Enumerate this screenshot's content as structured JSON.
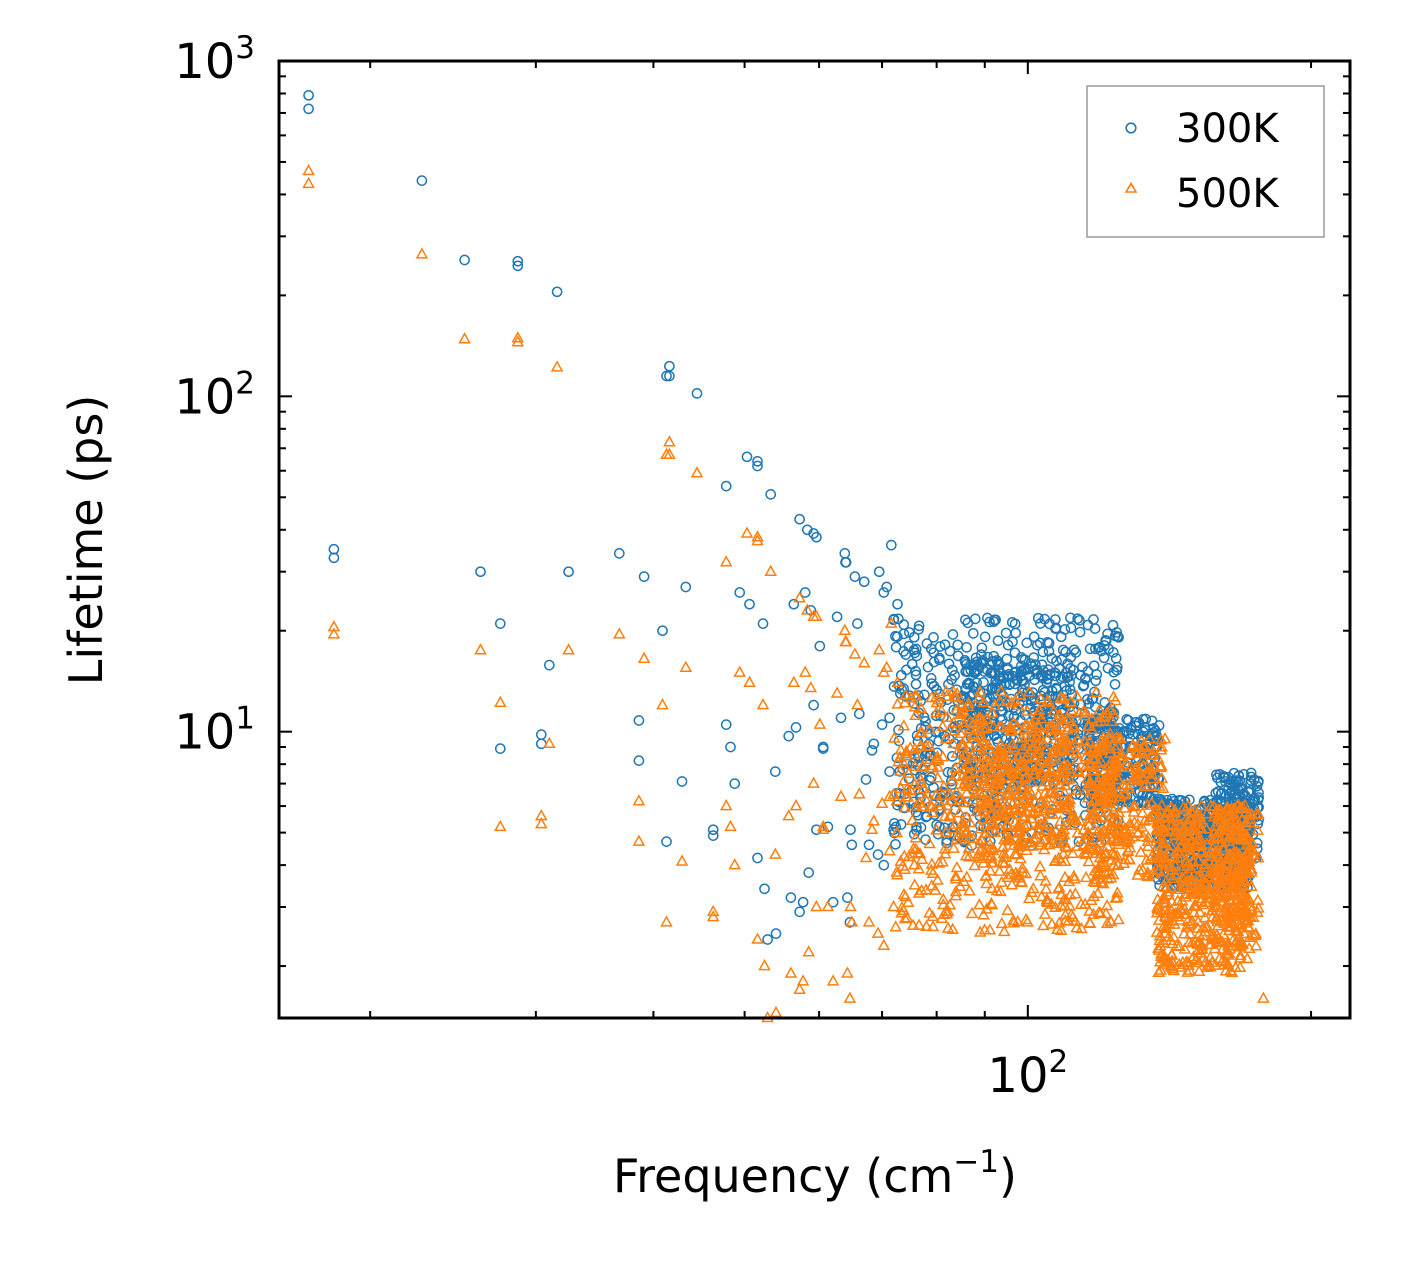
{
  "chart_data": {
    "type": "scatter",
    "title": "",
    "xlabel": "Frequency (cm",
    "xlabel_sup": "−1",
    "xlabel_close": ")",
    "ylabel": "Lifetime (ps)",
    "xscale": "log",
    "yscale": "log",
    "xlim": [
      16,
      220
    ],
    "ylim": [
      1.4,
      1000
    ],
    "x_tick_labels": [
      {
        "value": 100,
        "base": "10",
        "exp": "2"
      }
    ],
    "y_tick_labels": [
      {
        "value": 10,
        "base": "10",
        "exp": "1"
      },
      {
        "value": 100,
        "base": "10",
        "exp": "2"
      },
      {
        "value": 1000,
        "base": "10",
        "exp": "3"
      }
    ],
    "legend_position": "top-right",
    "series": [
      {
        "name": "300K",
        "color": "#1f77b4",
        "marker": "circle",
        "points": [
          [
            17.2,
            790
          ],
          [
            17.2,
            720
          ],
          [
            18.3,
            35
          ],
          [
            18.3,
            33
          ],
          [
            22.7,
            440
          ],
          [
            25.2,
            255
          ],
          [
            26.2,
            30
          ],
          [
            27.5,
            21
          ],
          [
            27.5,
            8.9
          ],
          [
            28.7,
            253
          ],
          [
            28.7,
            245
          ],
          [
            30.4,
            9.8
          ],
          [
            30.4,
            9.2
          ],
          [
            31.0,
            15.8
          ],
          [
            31.6,
            205
          ],
          [
            32.5,
            30
          ],
          [
            36.8,
            34
          ],
          [
            38.6,
            10.8
          ],
          [
            38.6,
            8.2
          ],
          [
            39.1,
            29
          ],
          [
            40.9,
            20
          ],
          [
            41.3,
            115
          ],
          [
            41.6,
            123
          ],
          [
            41.6,
            115
          ],
          [
            41.3,
            4.7
          ],
          [
            42.9,
            7.1
          ],
          [
            43.3,
            27
          ],
          [
            44.5,
            102
          ],
          [
            46.3,
            5.1
          ],
          [
            46.3,
            4.9
          ],
          [
            47.8,
            54
          ],
          [
            47.8,
            10.5
          ],
          [
            48.3,
            9.0
          ],
          [
            48.8,
            7.0
          ],
          [
            49.4,
            26
          ],
          [
            50.3,
            66
          ],
          [
            50.6,
            24
          ],
          [
            51.6,
            64
          ],
          [
            51.6,
            62
          ],
          [
            51.6,
            4.2
          ],
          [
            52.3,
            21
          ],
          [
            52.5,
            3.4
          ],
          [
            52.9,
            2.4
          ],
          [
            53.3,
            51
          ],
          [
            53.9,
            7.6
          ],
          [
            54.0,
            2.5
          ],
          [
            55.7,
            9.7
          ],
          [
            56.0,
            3.2
          ],
          [
            56.4,
            24
          ],
          [
            56.7,
            10.3
          ],
          [
            57.2,
            43
          ],
          [
            57.2,
            2.9
          ],
          [
            57.7,
            3.1
          ],
          [
            58.0,
            26
          ],
          [
            58.3,
            40
          ],
          [
            58.5,
            3.8
          ],
          [
            58.8,
            23
          ],
          [
            59.2,
            39
          ],
          [
            59.2,
            12
          ],
          [
            59.6,
            38
          ],
          [
            59.6,
            5.1
          ],
          [
            60.1,
            18
          ],
          [
            60.6,
            9.0
          ],
          [
            60.6,
            8.9
          ],
          [
            61.3,
            5.2
          ],
          [
            62.1,
            3.1
          ],
          [
            62.7,
            22
          ],
          [
            63.3,
            11
          ],
          [
            63.9,
            34
          ],
          [
            64.0,
            32
          ],
          [
            64.1,
            32
          ],
          [
            64.3,
            3.2
          ],
          [
            64.7,
            2.7
          ],
          [
            64.8,
            5.1
          ],
          [
            65.0,
            4.6
          ],
          [
            65.5,
            29
          ],
          [
            65.9,
            21
          ],
          [
            66.2,
            11.3
          ],
          [
            67.0,
            28
          ],
          [
            67.3,
            7.2
          ],
          [
            67.8,
            4.6
          ],
          [
            68.3,
            8.8
          ],
          [
            68.6,
            9.2
          ],
          [
            69.3,
            4.3
          ],
          [
            69.5,
            30
          ],
          [
            70.0,
            10.5
          ],
          [
            70.3,
            26
          ],
          [
            70.3,
            4.0
          ],
          [
            70.8,
            27
          ],
          [
            71.3,
            11
          ],
          [
            71.3,
            7.6
          ],
          [
            71.6,
            36
          ],
          [
            72.0,
            5.1
          ],
          [
            72.7,
            24
          ],
          [
            73.2,
            13
          ]
        ],
        "clusters": [
          {
            "xmin": 72,
            "xmax": 125,
            "logymin": 0.66,
            "logymax": 1.34,
            "n": 620
          },
          {
            "xmin": 85,
            "xmax": 112,
            "logymin": 0.85,
            "logymax": 1.22,
            "n": 260
          },
          {
            "xmin": 116,
            "xmax": 138,
            "logymin": 0.78,
            "logymax": 1.04,
            "n": 240
          },
          {
            "xmin": 137,
            "xmax": 172,
            "logymin": 0.53,
            "logymax": 0.8,
            "n": 520
          },
          {
            "xmin": 158,
            "xmax": 176,
            "logymin": 0.62,
            "logymax": 0.88,
            "n": 160
          }
        ]
      },
      {
        "name": "500K",
        "color": "#ff7f0e",
        "marker": "triangle",
        "points": [
          [
            17.2,
            470
          ],
          [
            17.2,
            430
          ],
          [
            18.3,
            20.5
          ],
          [
            18.3,
            19.5
          ],
          [
            22.7,
            265
          ],
          [
            25.2,
            148
          ],
          [
            26.2,
            17.5
          ],
          [
            27.5,
            12.2
          ],
          [
            27.5,
            5.2
          ],
          [
            28.7,
            149
          ],
          [
            28.7,
            145
          ],
          [
            30.4,
            5.6
          ],
          [
            30.4,
            5.3
          ],
          [
            31.0,
            9.2
          ],
          [
            31.6,
            122
          ],
          [
            32.5,
            17.5
          ],
          [
            36.8,
            19.5
          ],
          [
            38.6,
            6.2
          ],
          [
            38.6,
            4.7
          ],
          [
            39.1,
            16.5
          ],
          [
            40.9,
            12
          ],
          [
            41.3,
            67
          ],
          [
            41.6,
            73
          ],
          [
            41.6,
            67
          ],
          [
            41.3,
            2.7
          ],
          [
            42.9,
            4.1
          ],
          [
            43.3,
            15.5
          ],
          [
            44.5,
            59
          ],
          [
            46.3,
            2.9
          ],
          [
            46.3,
            2.8
          ],
          [
            47.8,
            32
          ],
          [
            47.8,
            6.0
          ],
          [
            48.3,
            5.2
          ],
          [
            48.8,
            4.0
          ],
          [
            49.4,
            15
          ],
          [
            50.3,
            39
          ],
          [
            50.6,
            14
          ],
          [
            51.6,
            38
          ],
          [
            51.6,
            37
          ],
          [
            51.6,
            2.4
          ],
          [
            52.3,
            12
          ],
          [
            52.5,
            2.0
          ],
          [
            52.9,
            1.4
          ],
          [
            53.3,
            30
          ],
          [
            53.9,
            4.3
          ],
          [
            54.0,
            1.45
          ],
          [
            55.7,
            5.6
          ],
          [
            56.0,
            1.9
          ],
          [
            56.4,
            14
          ],
          [
            56.7,
            6.0
          ],
          [
            57.2,
            25
          ],
          [
            57.2,
            1.7
          ],
          [
            57.7,
            1.8
          ],
          [
            58.0,
            15
          ],
          [
            58.3,
            23
          ],
          [
            58.5,
            2.2
          ],
          [
            58.8,
            13.5
          ],
          [
            59.2,
            22
          ],
          [
            59.2,
            7.0
          ],
          [
            59.6,
            22
          ],
          [
            59.6,
            3.0
          ],
          [
            60.1,
            10.5
          ],
          [
            60.6,
            5.2
          ],
          [
            60.6,
            5.1
          ],
          [
            61.3,
            3.0
          ],
          [
            62.1,
            1.8
          ],
          [
            62.7,
            13
          ],
          [
            63.3,
            6.4
          ],
          [
            63.9,
            20
          ],
          [
            64.0,
            18.5
          ],
          [
            64.1,
            18.5
          ],
          [
            64.3,
            1.9
          ],
          [
            64.7,
            1.6
          ],
          [
            64.8,
            3.0
          ],
          [
            65.0,
            2.7
          ],
          [
            65.5,
            17
          ],
          [
            65.9,
            12
          ],
          [
            66.2,
            6.5
          ],
          [
            67.0,
            16
          ],
          [
            67.3,
            4.2
          ],
          [
            67.8,
            2.7
          ],
          [
            68.3,
            5.1
          ],
          [
            68.6,
            5.4
          ],
          [
            69.3,
            2.5
          ],
          [
            69.5,
            17.5
          ],
          [
            70.0,
            6.1
          ],
          [
            70.3,
            15
          ],
          [
            70.3,
            2.3
          ],
          [
            70.8,
            15.5
          ],
          [
            71.3,
            6.4
          ],
          [
            71.3,
            4.4
          ],
          [
            71.6,
            21
          ],
          [
            72.0,
            3.0
          ],
          [
            72.7,
            14
          ],
          [
            73.2,
            7.6
          ],
          [
            178,
            1.6
          ]
        ],
        "clusters": [
          {
            "xmin": 72,
            "xmax": 125,
            "logymin": 0.4,
            "logymax": 1.12,
            "n": 620
          },
          {
            "xmin": 85,
            "xmax": 112,
            "logymin": 0.62,
            "logymax": 1.02,
            "n": 260
          },
          {
            "xmin": 116,
            "xmax": 140,
            "logymin": 0.55,
            "logymax": 0.98,
            "n": 240
          },
          {
            "xmin": 137,
            "xmax": 172,
            "logymin": 0.28,
            "logymax": 0.78,
            "n": 520
          },
          {
            "xmin": 158,
            "xmax": 176,
            "logymin": 0.36,
            "logymax": 0.78,
            "n": 160
          }
        ]
      }
    ]
  }
}
